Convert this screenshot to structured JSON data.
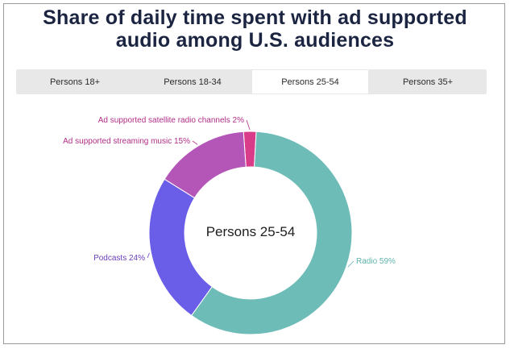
{
  "title_line1": "Share of daily time spent with ad supported",
  "title_line2": "audio among U.S. audiences",
  "tabs": [
    {
      "label": "Persons 18+"
    },
    {
      "label": "Persons 18-34"
    },
    {
      "label": "Persons 25-54"
    },
    {
      "label": "Persons 35+"
    }
  ],
  "active_tab": 2,
  "chart_data": {
    "type": "pie",
    "style": "donut",
    "title": "Share of daily time spent with ad supported audio among U.S. audiences",
    "center_label": "Persons 25-54",
    "slices": [
      {
        "name": "Ad supported satellite radio channels",
        "value": 2,
        "label": "Ad supported satellite radio channels 2%",
        "color": "#d93d8a"
      },
      {
        "name": "Radio",
        "value": 59,
        "label": "Radio 59%",
        "color": "#6dbcb7"
      },
      {
        "name": "Podcasts",
        "value": 24,
        "label": "Podcasts 24%",
        "color": "#6a5ee8"
      },
      {
        "name": "Ad supported streaming music",
        "value": 15,
        "label": "Ad supported streaming music 15%",
        "color": "#b356b8"
      }
    ],
    "label_colors": {
      "Ad supported satellite radio channels": "#b02e86",
      "Radio": "#5fb4ae",
      "Podcasts": "#6a3fb8",
      "Ad supported streaming music": "#b02e86"
    }
  }
}
